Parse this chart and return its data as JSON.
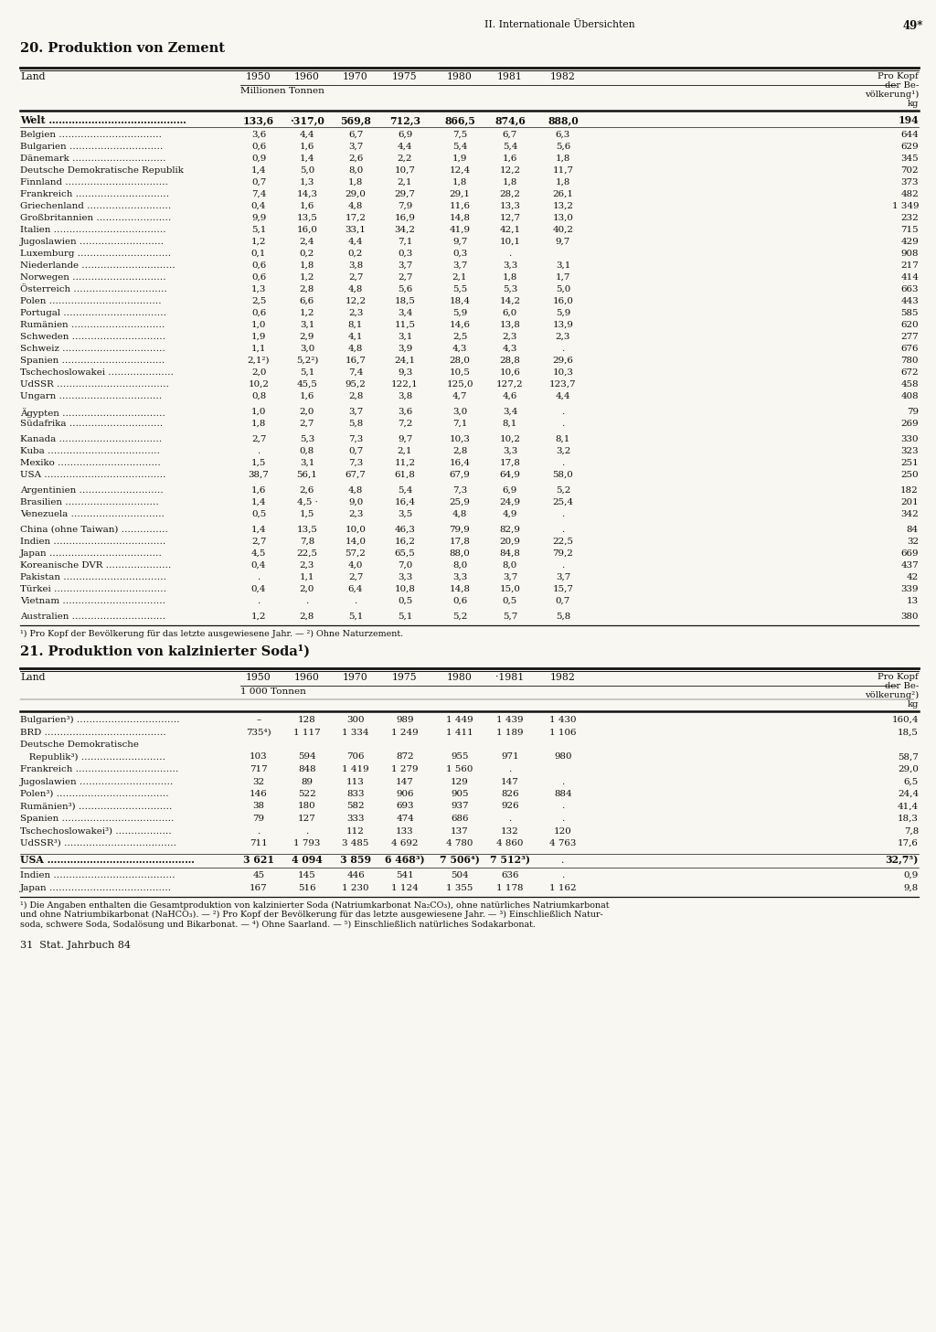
{
  "page_header_left": "II. Internationale Übersichten",
  "page_header_right": "49*",
  "title1": "20. Produktion von Zement",
  "table1_unit": "Millionen Tonnen",
  "table1_rows": [
    [
      "Welt ……………………………………",
      "133,6",
      "·317,0",
      "569,8",
      "712,3",
      "866,5",
      "874,6",
      "888,0",
      "194",
      true
    ],
    [
      "",
      "",
      "",
      "",
      "",
      "",
      "",
      "",
      "",
      false
    ],
    [
      "Belgien ……………………………",
      "3,6",
      "4,4",
      "6,7",
      "6,9",
      "7,5",
      "6,7",
      "6,3",
      "644",
      false
    ],
    [
      "Bulgarien …………………………",
      "0,6",
      "1,6",
      "3,7",
      "4,4",
      "5,4",
      "5,4",
      "5,6",
      "629",
      false
    ],
    [
      "Dänemark …………………………",
      "0,9",
      "1,4",
      "2,6",
      "2,2",
      "1,9",
      "1,6",
      "1,8",
      "345",
      false
    ],
    [
      "Deutsche Demokratische Republik",
      "1,4",
      "5,0",
      "8,0",
      "10,7",
      "12,4",
      "12,2",
      "11,7",
      "702",
      false
    ],
    [
      "Finnland ……………………………",
      "0,7",
      "1,3",
      "1,8",
      "2,1",
      "1,8",
      "1,8",
      "1,8",
      "373",
      false
    ],
    [
      "Frankreich …………………………",
      "7,4",
      "14,3",
      "29,0",
      "29,7",
      "29,1",
      "28,2",
      "26,1",
      "482",
      false
    ],
    [
      "Griechenland ………………………",
      "0,4",
      "1,6",
      "4,8",
      "7,9",
      "11,6",
      "13,3",
      "13,2",
      "1 349",
      false
    ],
    [
      "Großbritannien ……………………",
      "9,9",
      "13,5",
      "17,2",
      "16,9",
      "14,8",
      "12,7",
      "13,0",
      "232",
      false
    ],
    [
      "Italien ………………………………",
      "5,1",
      "16,0",
      "33,1",
      "34,2",
      "41,9",
      "42,1",
      "40,2",
      "715",
      false
    ],
    [
      "Jugoslawien ………………………",
      "1,2",
      "2,4",
      "4,4",
      "7,1",
      "9,7",
      "10,1",
      "9,7",
      "429",
      false
    ],
    [
      "Luxemburg …………………………",
      "0,1",
      "0,2",
      "0,2",
      "0,3",
      "0,3",
      ".",
      "",
      "908",
      false
    ],
    [
      "Niederlande …………………………",
      "0,6",
      "1,8",
      "3,8",
      "3,7",
      "3,7",
      "3,3",
      "3,1",
      "217",
      false
    ],
    [
      "Norwegen …………………………",
      "0,6",
      "1,2",
      "2,7",
      "2,7",
      "2,1",
      "1,8",
      "1,7",
      "414",
      false
    ],
    [
      "Österreich …………………………",
      "1,3",
      "2,8",
      "4,8",
      "5,6",
      "5,5",
      "5,3",
      "5,0",
      "663",
      false
    ],
    [
      "Polen ………………………………",
      "2,5",
      "6,6",
      "12,2",
      "18,5",
      "18,4",
      "14,2",
      "16,0",
      "443",
      false
    ],
    [
      "Portugal ……………………………",
      "0,6",
      "1,2",
      "2,3",
      "3,4",
      "5,9",
      "6,0",
      "5,9",
      "585",
      false
    ],
    [
      "Rumänien …………………………",
      "1,0",
      "3,1",
      "8,1",
      "11,5",
      "14,6",
      "13,8",
      "13,9",
      "620",
      false
    ],
    [
      "Schweden …………………………",
      "1,9",
      "2,9",
      "4,1",
      "3,1",
      "2,5",
      "2,3",
      "2,3",
      "277",
      false
    ],
    [
      "Schweiz ……………………………",
      "1,1",
      "3,0",
      "4,8",
      "3,9",
      "4,3",
      "4,3",
      ".",
      "676",
      false
    ],
    [
      "Spanien ……………………………",
      "2,1²)",
      "5,2²)",
      "16,7",
      "24,1",
      "28,0",
      "28,8",
      "29,6",
      "780",
      false
    ],
    [
      "Tschechoslowakei …………………",
      "2,0",
      "5,1",
      "7,4",
      "9,3",
      "10,5",
      "10,6",
      "10,3",
      "672",
      false
    ],
    [
      "UdSSR ………………………………",
      "10,2",
      "45,5",
      "95,2",
      "122,1",
      "125,0",
      "127,2",
      "123,7",
      "458",
      false
    ],
    [
      "Ungarn ……………………………",
      "0,8",
      "1,6",
      "2,8",
      "3,8",
      "4,7",
      "4,6",
      "4,4",
      "408",
      false
    ],
    [
      "",
      "",
      "",
      "",
      "",
      "",
      "",
      "",
      "",
      false
    ],
    [
      "Ägypten ……………………………",
      "1,0",
      "2,0",
      "3,7",
      "3,6",
      "3,0",
      "3,4",
      ".",
      "79",
      false
    ],
    [
      "Südafrika …………………………",
      "1,8",
      "2,7",
      "5,8",
      "7,2",
      "7,1",
      "8,1",
      ".",
      "269",
      false
    ],
    [
      "",
      "",
      "",
      "",
      "",
      "",
      "",
      "",
      "",
      false
    ],
    [
      "Kanada ……………………………",
      "2,7",
      "5,3",
      "7,3",
      "9,7",
      "10,3",
      "10,2",
      "8,1",
      "330",
      false
    ],
    [
      "Kuba ………………………………",
      ".",
      "0,8",
      "0,7",
      "2,1",
      "2,8",
      "3,3",
      "3,2",
      "323",
      false
    ],
    [
      "Mexiko ……………………………",
      "1,5",
      "3,1",
      "7,3",
      "11,2",
      "16,4",
      "17,8",
      ".",
      "251",
      false
    ],
    [
      "USA …………………………………",
      "38,7",
      "56,1",
      "67,7",
      "61,8",
      "67,9",
      "64,9",
      "58,0",
      "250",
      false
    ],
    [
      "",
      "",
      "",
      "",
      "",
      "",
      "",
      "",
      "",
      false
    ],
    [
      "Argentinien ………………………",
      "1,6",
      "2,6",
      "4,8",
      "5,4",
      "7,3",
      "6,9",
      "5,2",
      "182",
      false
    ],
    [
      "Brasilien …………………………",
      "1,4",
      "4,5 ·",
      "9,0",
      "16,4",
      "25,9",
      "24,9",
      "25,4",
      "201",
      false
    ],
    [
      "Venezuela …………………………",
      "0,5",
      "1,5",
      "2,3",
      "3,5",
      "4,8",
      "4,9",
      ".",
      "342",
      false
    ],
    [
      "",
      "",
      "",
      "",
      "",
      "",
      "",
      "",
      "",
      false
    ],
    [
      "China (ohne Taiwan) ……………",
      "1,4",
      "13,5",
      "10,0",
      "46,3",
      "79,9",
      "82,9",
      ".",
      "84",
      false
    ],
    [
      "Indien ………………………………",
      "2,7",
      "7,8",
      "14,0",
      "16,2",
      "17,8",
      "20,9",
      "22,5",
      "32",
      false
    ],
    [
      "Japan ………………………………",
      "4,5",
      "22,5",
      "57,2",
      "65,5",
      "88,0",
      "84,8",
      "79,2",
      "669",
      false
    ],
    [
      "Koreanische DVR …………………",
      "0,4",
      "2,3",
      "4,0",
      "7,0",
      "8,0",
      "8,0",
      ".",
      "437",
      false
    ],
    [
      "Pakistan ……………………………",
      ".",
      "1,1",
      "2,7",
      "3,3",
      "3,3",
      "3,7",
      "3,7",
      "42",
      false
    ],
    [
      "Türkei ………………………………",
      "0,4",
      "2,0",
      "6,4",
      "10,8",
      "14,8",
      "15,0",
      "15,7",
      "339",
      false
    ],
    [
      "Vietnam ……………………………",
      ".",
      ".",
      ".",
      "0,5",
      "0,6",
      "0,5",
      "0,7",
      "13",
      false
    ],
    [
      "",
      "",
      "",
      "",
      "",
      "",
      "",
      "",
      "",
      false
    ],
    [
      "Australien …………………………",
      "1,2",
      "2,8",
      "5,1",
      "5,1",
      "5,2",
      "5,7",
      "5,8",
      "380",
      false
    ]
  ],
  "table1_footnote": "¹) Pro Kopf der Bevölkerung für das letzte ausgewiesene Jahr. — ²) Ohne Naturzement.",
  "title2": "21. Produktion von kalzinierter Soda¹)",
  "table2_unit": "1 000 Tonnen",
  "table2_rows": [
    [
      "Bulgarien³) ……………………………",
      "–",
      "128",
      "300",
      "989",
      "1 449",
      "1 439",
      "1 430",
      "160,4",
      false
    ],
    [
      "BRD …………………………………",
      "735⁴)",
      "1 117",
      "1 334",
      "1 249",
      "1 411",
      "1 189",
      "1 106",
      "18,5",
      false
    ],
    [
      "Deutsche Demokratische",
      "",
      "",
      "",
      "",
      "",
      "",
      "",
      "",
      false
    ],
    [
      "   Republik³) ………………………",
      "103",
      "594",
      "706",
      "872",
      "955",
      "971",
      "980",
      "58,7",
      false
    ],
    [
      "Frankreich ……………………………",
      "717",
      "848",
      "1 419",
      "1 279",
      "1 560",
      ".",
      "",
      "29,0",
      false
    ],
    [
      "Jugoslawien …………………………",
      "32",
      "89",
      "113",
      "147",
      "129",
      "147",
      ".",
      "6,5",
      false
    ],
    [
      "Polen³) ………………………………",
      "146",
      "522",
      "833",
      "906",
      "905",
      "826",
      "884",
      "24,4",
      false
    ],
    [
      "Rumänien³) …………………………",
      "38",
      "180",
      "582",
      "693",
      "937",
      "926",
      ".",
      "41,4",
      false
    ],
    [
      "Spanien ………………………………",
      "79",
      "127",
      "333",
      "474",
      "686",
      ".",
      ".",
      "18,3",
      false
    ],
    [
      "Tschechoslowakei³) ………………",
      ".",
      ".",
      "112",
      "133",
      "137",
      "132",
      "120",
      "7,8",
      false
    ],
    [
      "UdSSR³) ………………………………",
      "711",
      "1 793",
      "3 485",
      "4 692",
      "4 780",
      "4 860",
      "4 763",
      "17,6",
      false
    ],
    [
      "",
      "",
      "",
      "",
      "",
      "",
      "",
      "",
      "",
      false
    ],
    [
      "USA ………………………………………",
      "3 621",
      "4 094",
      "3 859",
      "6 468³)",
      "7 506⁴)",
      "7 512³)",
      ".",
      "32,7⁵)",
      true
    ],
    [
      "",
      "",
      "",
      "",
      "",
      "",
      "",
      "",
      "",
      false
    ],
    [
      "Indien …………………………………",
      "45",
      "145",
      "446",
      "541",
      "504",
      "636",
      ".",
      "0,9",
      false
    ],
    [
      "Japan …………………………………",
      "167",
      "516",
      "1 230",
      "1 124",
      "1 355",
      "1 178",
      "1 162",
      "9,8",
      false
    ]
  ],
  "table2_footnote_lines": [
    "¹) Die Angaben enthalten die Gesamtproduktion von kalzinierter Soda (Natriumkarbonat Na₂CO₃), ohne natürliches Natriumkarbonat",
    "und ohne Natriumbikarbonat (NaHCO₃). — ²) Pro Kopf der Bevölkerung für das letzte ausgewiesene Jahr. — ³) Einschließlich Natur-",
    "soda, schwere Soda, Sodalösung und Bikarbonat. — ⁴) Ohne Saarland. — ⁵) Einschließlich natürliches Sodakarbonat."
  ],
  "footer": "31  Stat. Jahrbuch 84",
  "bg_color": "#f8f7f2",
  "text_color": "#111111",
  "line_color": "#111111"
}
